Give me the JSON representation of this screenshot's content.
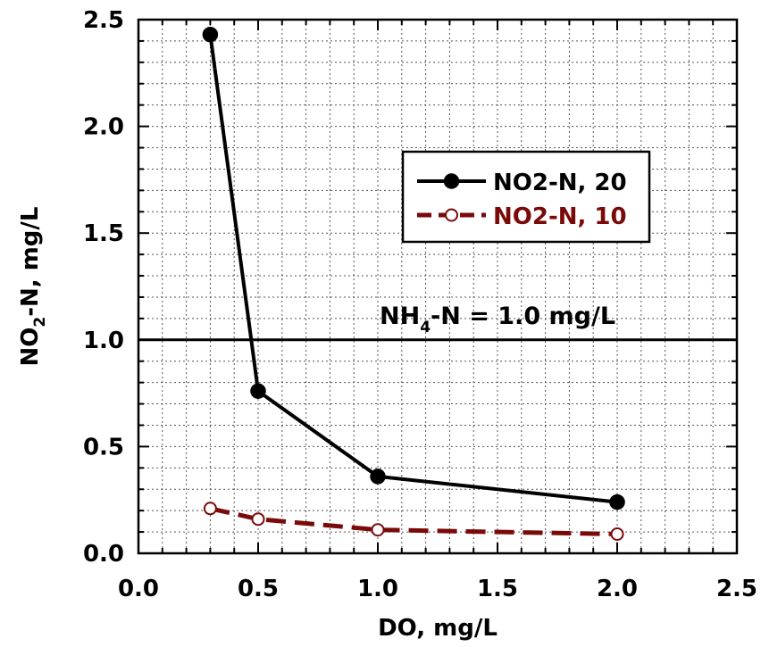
{
  "chart_data": {
    "type": "line",
    "xlabel": "DO, mg/L",
    "ylabel_parts": {
      "main": "NO",
      "sub": "2",
      "rest": "-N, mg/L"
    },
    "xlim": [
      0.0,
      2.5
    ],
    "ylim": [
      0.0,
      2.5
    ],
    "x_ticks": [
      "0.0",
      "0.5",
      "1.0",
      "1.5",
      "2.0",
      "2.5"
    ],
    "y_ticks": [
      "0.0",
      "0.5",
      "1.0",
      "1.5",
      "2.0",
      "2.5"
    ],
    "grid": true,
    "legend_position": "upper-right",
    "series": [
      {
        "name": "NO2-N, 20",
        "color": "#000000",
        "marker": "filled-circle",
        "line": "solid",
        "x": [
          0.3,
          0.5,
          1.0,
          2.0
        ],
        "y": [
          2.43,
          0.76,
          0.36,
          0.24
        ]
      },
      {
        "name": "NO2-N, 10",
        "color": "#7a0a0a",
        "marker": "open-circle",
        "line": "dashed",
        "x": [
          0.3,
          0.5,
          1.0,
          2.0
        ],
        "y": [
          0.21,
          0.16,
          0.11,
          0.09
        ]
      }
    ],
    "reference_line": {
      "y": 1.0
    },
    "annotation": {
      "main": "NH",
      "sub": "4",
      "rest": "-N = 1.0 mg/L"
    }
  }
}
